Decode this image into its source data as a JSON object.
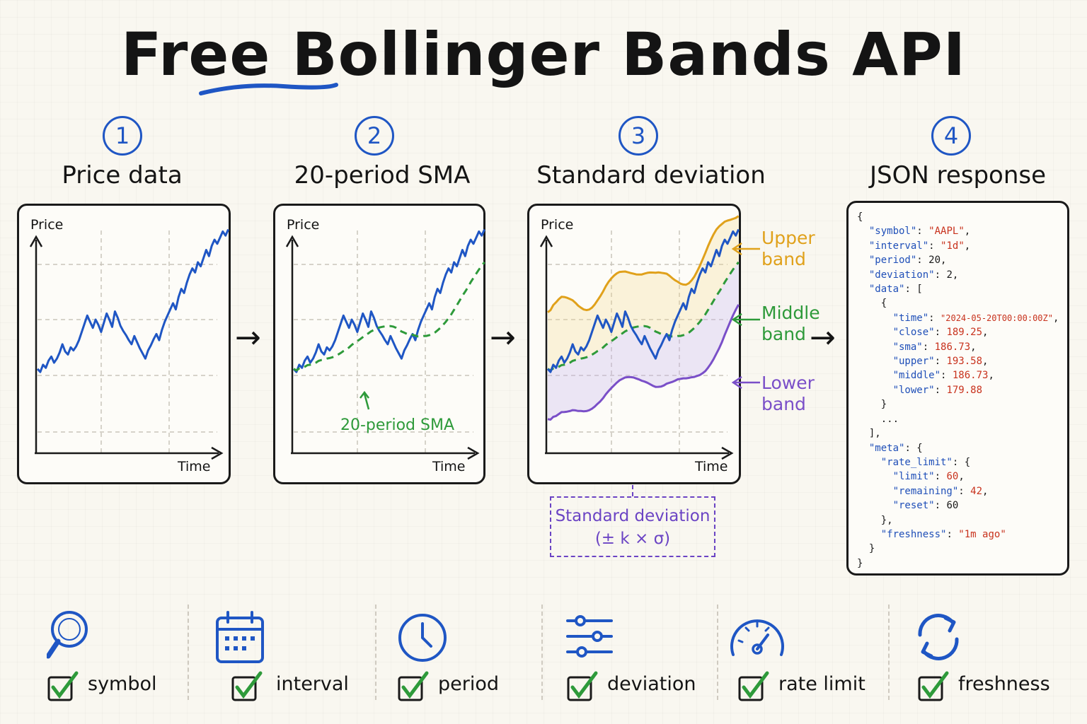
{
  "title": "Free Bollinger Bands API",
  "steps": [
    {
      "number": "1",
      "label": "Price data"
    },
    {
      "number": "2",
      "label": "20-period SMA"
    },
    {
      "number": "3",
      "label": "Standard deviation"
    },
    {
      "number": "4",
      "label": "JSON response"
    }
  ],
  "axes": {
    "y": "Price",
    "x": "Time"
  },
  "sma_annotation": "20-period SMA",
  "band_labels": {
    "upper": "Upper band",
    "middle": "Middle band",
    "lower": "Lower band"
  },
  "stddev_note": {
    "line1": "Standard deviation",
    "line2": "(± k × σ)"
  },
  "json_response": {
    "symbol": "AAPL",
    "interval": "1d",
    "period": 20,
    "deviation": 2,
    "data_item": {
      "time": "2024-05-20T00:00:00Z",
      "close": 189.25,
      "sma": 186.73,
      "upper": 193.58,
      "middle": 186.73,
      "lower": 179.88
    },
    "meta": {
      "rate_limit": {
        "limit": 60,
        "remaining": 42,
        "reset": 60
      },
      "freshness": "1m ago"
    }
  },
  "features": [
    {
      "icon": "magnifier-icon",
      "label": "symbol"
    },
    {
      "icon": "calendar-icon",
      "label": "interval"
    },
    {
      "icon": "clock-icon",
      "label": "period"
    },
    {
      "icon": "sliders-icon",
      "label": "deviation"
    },
    {
      "icon": "gauge-icon",
      "label": "rate limit"
    },
    {
      "icon": "refresh-icon",
      "label": "freshness"
    }
  ],
  "colors": {
    "price": "#1f56c4",
    "sma": "#2e9a3a",
    "upper": "#e0a11b",
    "lower": "#7a4fc8",
    "check": "#2e9a3a"
  }
}
